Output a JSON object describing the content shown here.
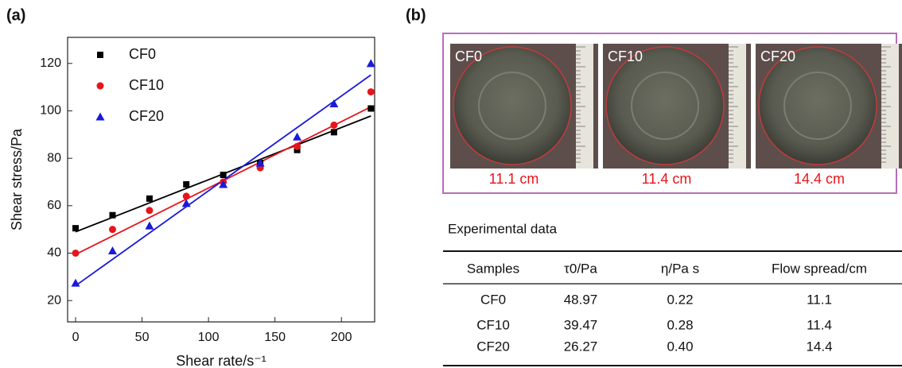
{
  "chart_data": {
    "type": "scatter",
    "panel_label": "(a)",
    "x_label": "Shear rate/s⁻¹",
    "y_label": "Shear stress/Pa",
    "x": [
      0,
      27.8,
      55.6,
      83.3,
      111.1,
      138.9,
      166.7,
      194.4,
      222.2
    ],
    "series": [
      {
        "name": "CF0",
        "color": "#000000",
        "marker": "square",
        "values": [
          50.5,
          56,
          63,
          69,
          73,
          78,
          83.5,
          91,
          101
        ]
      },
      {
        "name": "CF10",
        "color": "#e8141b",
        "marker": "circle",
        "values": [
          40,
          50,
          58,
          64,
          70,
          76,
          85,
          94,
          108
        ]
      },
      {
        "name": "CF20",
        "color": "#1a1adb",
        "marker": "triangle",
        "values": [
          27.4,
          41,
          51.5,
          61,
          69,
          78,
          89,
          103,
          120
        ]
      }
    ],
    "xlim": [
      -6,
      225
    ],
    "ylim": [
      11,
      131
    ],
    "xticks": [
      0,
      50,
      100,
      150,
      200
    ],
    "yticks": [
      20,
      40,
      60,
      80,
      100,
      120
    ],
    "legend": "top-left"
  },
  "panel_b": {
    "panel_label": "(b)",
    "photos": [
      {
        "label": "CF0",
        "spread": "11.1 cm"
      },
      {
        "label": "CF10",
        "spread": "11.4 cm"
      },
      {
        "label": "CF20",
        "spread": "14.4 cm"
      }
    ],
    "table": {
      "caption": "Experimental data",
      "header": [
        "Samples",
        "τ0/Pa",
        "η/Pa s",
        "Flow spread/cm"
      ],
      "rows": [
        [
          "CF0",
          "48.97",
          "0.22",
          "11.1"
        ],
        [
          "CF10",
          "39.47",
          "0.28",
          "11.4"
        ],
        [
          "CF20",
          "26.27",
          "0.40",
          "14.4"
        ]
      ]
    }
  }
}
